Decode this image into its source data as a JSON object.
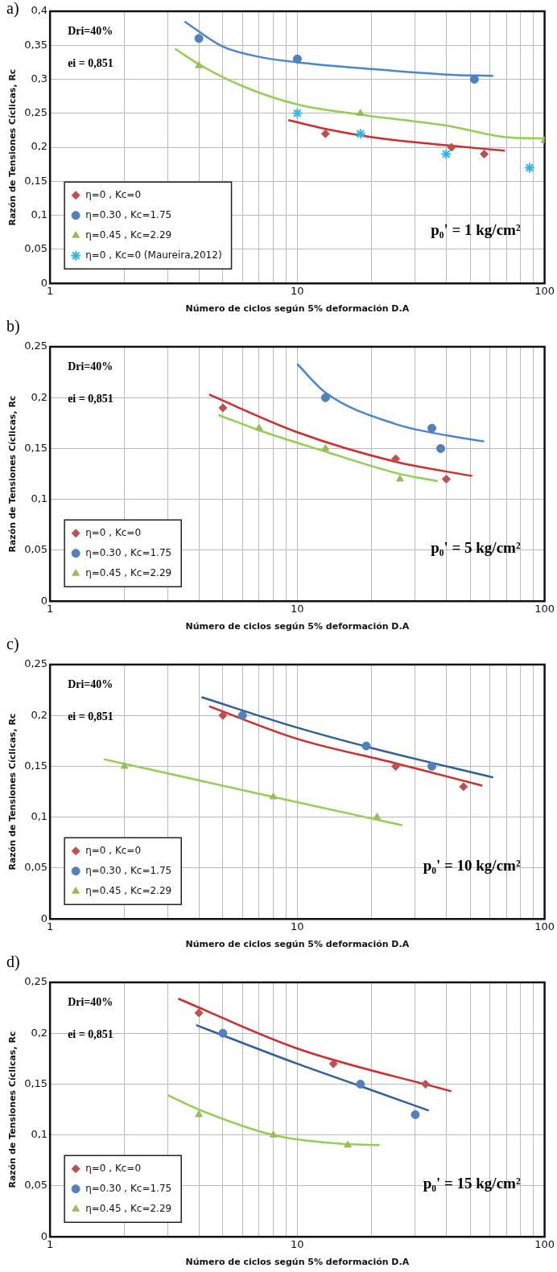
{
  "chart_data": [
    {
      "type": "scatter",
      "title": "a)",
      "xlabel": "Número de ciclos según 5% deformación D.A",
      "ylabel": "Razón de Tensiones Cíclicas, Rc",
      "log": "x",
      "grid": true,
      "legend": "bottom left",
      "xlim": [
        1,
        100
      ],
      "xticks": [
        1,
        {
          "value": 2,
          "label": null
        },
        {
          "value": 3,
          "label": null
        },
        {
          "value": 4,
          "label": null
        },
        {
          "value": 5,
          "label": null
        },
        {
          "value": 6,
          "label": null
        },
        {
          "value": 7,
          "label": null
        },
        {
          "value": 8,
          "label": null
        },
        {
          "value": 9,
          "label": null
        },
        10,
        {
          "value": 20,
          "label": null
        },
        {
          "value": 30,
          "label": null
        },
        {
          "value": 40,
          "label": null
        },
        {
          "value": 50,
          "label": null
        },
        {
          "value": 60,
          "label": null
        },
        {
          "value": 70,
          "label": null
        },
        {
          "value": 80,
          "label": null
        },
        {
          "value": 90,
          "label": null
        },
        100
      ],
      "ylim": [
        0,
        0.4
      ],
      "yticks": [
        {
          "value": 0,
          "label": "0"
        },
        {
          "value": 0.05,
          "label": "0,05"
        },
        {
          "value": 0.1,
          "label": "0,1"
        },
        {
          "value": 0.15,
          "label": "0,15"
        },
        {
          "value": 0.2,
          "label": "0,2"
        },
        {
          "value": 0.25,
          "label": "0,25"
        },
        {
          "value": 0.3,
          "label": "0,3"
        },
        {
          "value": 0.35,
          "label": "0,35"
        },
        {
          "value": 0.4,
          "label": "0,4"
        }
      ],
      "annotations": [
        "Dri=40%",
        "ei = 0,851",
        "p₀' = 1 kg/cm²"
      ],
      "series": [
        {
          "name": "η=0 , Kc=0",
          "color": "#c0504d",
          "marker": "diamond",
          "x": [
            13,
            42,
            57
          ],
          "values": [
            0.22,
            0.2,
            0.19
          ]
        },
        {
          "name": "η=0.30 , Kc=1.75",
          "color": "#4f81bd",
          "marker": "circle",
          "x": [
            4,
            10,
            52
          ],
          "values": [
            0.36,
            0.33,
            0.3
          ]
        },
        {
          "name": "η=0.45 , Kc=2.29",
          "color": "#9bbb59",
          "marker": "triangle",
          "x": [
            4,
            18,
            100
          ],
          "values": [
            0.32,
            0.25,
            0.21
          ]
        },
        {
          "name": "η=0 , Kc=0 (Maureira,2012)",
          "color": "#33b5e8",
          "marker": "cross",
          "x": [
            10,
            18,
            40,
            87
          ],
          "values": [
            0.25,
            0.22,
            0.19,
            0.17
          ]
        },
        {
          "type": "line",
          "color": "#d42a2a",
          "x": [
            9.2,
            13,
            20,
            40,
            69
          ],
          "values": [
            0.24,
            0.227,
            0.215,
            0.203,
            0.195
          ]
        },
        {
          "type": "line",
          "color": "#4a86d0",
          "x": [
            3.5,
            5,
            7,
            10,
            20,
            40,
            62
          ],
          "values": [
            0.385,
            0.348,
            0.333,
            0.325,
            0.315,
            0.307,
            0.305
          ]
        },
        {
          "type": "line",
          "color": "#92d050",
          "x": [
            3.2,
            4,
            6,
            10,
            18,
            40,
            70,
            100
          ],
          "values": [
            0.345,
            0.322,
            0.29,
            0.263,
            0.248,
            0.232,
            0.215,
            0.213
          ]
        }
      ]
    },
    {
      "type": "scatter",
      "title": "b)",
      "xlabel": "Número de ciclos según 5% deformación D.A",
      "ylabel": "Razón de Tensiones Cíclicas, Rc",
      "log": "x",
      "grid": true,
      "legend": "bottom left",
      "xlim": [
        1,
        100
      ],
      "xticks": [
        1,
        {
          "value": 2,
          "label": null
        },
        {
          "value": 3,
          "label": null
        },
        {
          "value": 4,
          "label": null
        },
        {
          "value": 5,
          "label": null
        },
        {
          "value": 6,
          "label": null
        },
        {
          "value": 7,
          "label": null
        },
        {
          "value": 8,
          "label": null
        },
        {
          "value": 9,
          "label": null
        },
        10,
        {
          "value": 20,
          "label": null
        },
        {
          "value": 30,
          "label": null
        },
        {
          "value": 40,
          "label": null
        },
        {
          "value": 50,
          "label": null
        },
        {
          "value": 60,
          "label": null
        },
        {
          "value": 70,
          "label": null
        },
        {
          "value": 80,
          "label": null
        },
        {
          "value": 90,
          "label": null
        },
        100
      ],
      "ylim": [
        0,
        0.25
      ],
      "yticks": [
        {
          "value": 0,
          "label": "0"
        },
        {
          "value": 0.05,
          "label": "0,05"
        },
        {
          "value": 0.1,
          "label": "0,1"
        },
        {
          "value": 0.15,
          "label": "0,15"
        },
        {
          "value": 0.2,
          "label": "0,2"
        },
        {
          "value": 0.25,
          "label": "0,25"
        }
      ],
      "annotations": [
        "Dri=40%",
        "ei = 0,851",
        "p₀' = 5 kg/cm²"
      ],
      "series": [
        {
          "name": "η=0 , Kc=0",
          "color": "#c0504d",
          "marker": "diamond",
          "x": [
            5,
            25,
            40
          ],
          "values": [
            0.19,
            0.14,
            0.12
          ]
        },
        {
          "name": "η=0.30 , Kc=1.75",
          "color": "#4f81bd",
          "marker": "circle",
          "x": [
            13,
            35,
            38
          ],
          "values": [
            0.2,
            0.17,
            0.15
          ]
        },
        {
          "name": "η=0.45 , Kc=2.29",
          "color": "#9bbb59",
          "marker": "triangle",
          "x": [
            7,
            13,
            26
          ],
          "values": [
            0.17,
            0.15,
            0.12
          ]
        },
        {
          "type": "line",
          "color": "#d42a2a",
          "x": [
            4.4,
            10,
            25,
            51
          ],
          "values": [
            0.203,
            0.166,
            0.137,
            0.123
          ]
        },
        {
          "type": "line",
          "color": "#4a86d0",
          "x": [
            10,
            13,
            25,
            40,
            57
          ],
          "values": [
            0.233,
            0.205,
            0.174,
            0.163,
            0.157
          ]
        },
        {
          "type": "line",
          "color": "#92d050",
          "x": [
            4.8,
            7,
            13,
            26,
            37
          ],
          "values": [
            0.183,
            0.168,
            0.147,
            0.125,
            0.118
          ]
        }
      ]
    },
    {
      "type": "scatter",
      "title": "c)",
      "xlabel": "Número de ciclos según 5% deformación D.A",
      "ylabel": "Razón de Tensiones Cíclicas, Rc",
      "log": "x",
      "grid": true,
      "legend": "bottom left",
      "xlim": [
        1,
        100
      ],
      "xticks": [
        1,
        {
          "value": 2,
          "label": null
        },
        {
          "value": 3,
          "label": null
        },
        {
          "value": 4,
          "label": null
        },
        {
          "value": 5,
          "label": null
        },
        {
          "value": 6,
          "label": null
        },
        {
          "value": 7,
          "label": null
        },
        {
          "value": 8,
          "label": null
        },
        {
          "value": 9,
          "label": null
        },
        10,
        {
          "value": 20,
          "label": null
        },
        {
          "value": 30,
          "label": null
        },
        {
          "value": 40,
          "label": null
        },
        {
          "value": 50,
          "label": null
        },
        {
          "value": 60,
          "label": null
        },
        {
          "value": 70,
          "label": null
        },
        {
          "value": 80,
          "label": null
        },
        {
          "value": 90,
          "label": null
        },
        100
      ],
      "ylim": [
        0,
        0.25
      ],
      "yticks": [
        {
          "value": 0,
          "label": "0"
        },
        {
          "value": 0.05,
          "label": "0,05"
        },
        {
          "value": 0.1,
          "label": "0,1"
        },
        {
          "value": 0.15,
          "label": "0,15"
        },
        {
          "value": 0.2,
          "label": "0,2"
        },
        {
          "value": 0.25,
          "label": "0,25"
        }
      ],
      "annotations": [
        "Dri=40%",
        "ei = 0,851",
        "p₀' = 10 kg/cm²"
      ],
      "series": [
        {
          "name": "η=0 , Kc=0",
          "color": "#c0504d",
          "marker": "diamond",
          "x": [
            5,
            25,
            47
          ],
          "values": [
            0.2,
            0.15,
            0.13
          ]
        },
        {
          "name": "η=0.30 , Kc=1.75",
          "color": "#4f81bd",
          "marker": "circle",
          "x": [
            6,
            19,
            35
          ],
          "values": [
            0.2,
            0.17,
            0.15
          ]
        },
        {
          "name": "η=0.45 , Kc=2.29",
          "color": "#9bbb59",
          "marker": "triangle",
          "x": [
            2,
            8,
            21
          ],
          "values": [
            0.15,
            0.12,
            0.1
          ]
        },
        {
          "type": "line",
          "color": "#d42a2a",
          "x": [
            4.4,
            10,
            25,
            56
          ],
          "values": [
            0.209,
            0.177,
            0.153,
            0.131
          ]
        },
        {
          "type": "line",
          "color": "#2f5f9e",
          "x": [
            4.1,
            10,
            20,
            62
          ],
          "values": [
            0.218,
            0.188,
            0.168,
            0.139
          ]
        },
        {
          "type": "line",
          "color": "#92d050",
          "x": [
            1.65,
            8,
            26.6
          ],
          "values": [
            0.157,
            0.12,
            0.092
          ]
        }
      ]
    },
    {
      "type": "scatter",
      "title": "d)",
      "xlabel": "Número de ciclos según 5% deformación D.A",
      "ylabel": "Razón de Tensiones Cíclicas, Rc",
      "log": "x",
      "grid": true,
      "legend": "bottom left",
      "xlim": [
        1,
        100
      ],
      "xticks": [
        1,
        {
          "value": 2,
          "label": null
        },
        {
          "value": 3,
          "label": null
        },
        {
          "value": 4,
          "label": null
        },
        {
          "value": 5,
          "label": null
        },
        {
          "value": 6,
          "label": null
        },
        {
          "value": 7,
          "label": null
        },
        {
          "value": 8,
          "label": null
        },
        {
          "value": 9,
          "label": null
        },
        10,
        {
          "value": 20,
          "label": null
        },
        {
          "value": 30,
          "label": null
        },
        {
          "value": 40,
          "label": null
        },
        {
          "value": 50,
          "label": null
        },
        {
          "value": 60,
          "label": null
        },
        {
          "value": 70,
          "label": null
        },
        {
          "value": 80,
          "label": null
        },
        {
          "value": 90,
          "label": null
        },
        100
      ],
      "ylim": [
        0,
        0.25
      ],
      "yticks": [
        {
          "value": 0,
          "label": "0"
        },
        {
          "value": 0.05,
          "label": "0,05"
        },
        {
          "value": 0.1,
          "label": "0,1"
        },
        {
          "value": 0.15,
          "label": "0,15"
        },
        {
          "value": 0.2,
          "label": "0,2"
        },
        {
          "value": 0.25,
          "label": "0,25"
        }
      ],
      "annotations": [
        "Dri=40%",
        "ei = 0,851",
        "p₀' = 15 kg/cm²"
      ],
      "series": [
        {
          "name": "η=0 , Kc=0",
          "color": "#c0504d",
          "marker": "diamond",
          "x": [
            4,
            14,
            33
          ],
          "values": [
            0.22,
            0.17,
            0.15
          ]
        },
        {
          "name": "η=0.30 , Kc=1.75",
          "color": "#4f81bd",
          "marker": "circle",
          "x": [
            5,
            18,
            30
          ],
          "values": [
            0.2,
            0.15,
            0.12
          ]
        },
        {
          "name": "η=0.45 , Kc=2.29",
          "color": "#9bbb59",
          "marker": "triangle",
          "x": [
            4,
            8,
            16
          ],
          "values": [
            0.12,
            0.1,
            0.09
          ]
        },
        {
          "type": "line",
          "color": "#d42a2a",
          "x": [
            3.3,
            10,
            42
          ],
          "values": [
            0.234,
            0.185,
            0.143
          ]
        },
        {
          "type": "line",
          "color": "#2f5f9e",
          "x": [
            3.9,
            10,
            18,
            34
          ],
          "values": [
            0.208,
            0.17,
            0.148,
            0.124
          ]
        },
        {
          "type": "line",
          "color": "#92d050",
          "x": [
            3,
            4,
            8,
            16,
            21.5
          ],
          "values": [
            0.139,
            0.125,
            0.1,
            0.091,
            0.09
          ]
        }
      ]
    }
  ]
}
